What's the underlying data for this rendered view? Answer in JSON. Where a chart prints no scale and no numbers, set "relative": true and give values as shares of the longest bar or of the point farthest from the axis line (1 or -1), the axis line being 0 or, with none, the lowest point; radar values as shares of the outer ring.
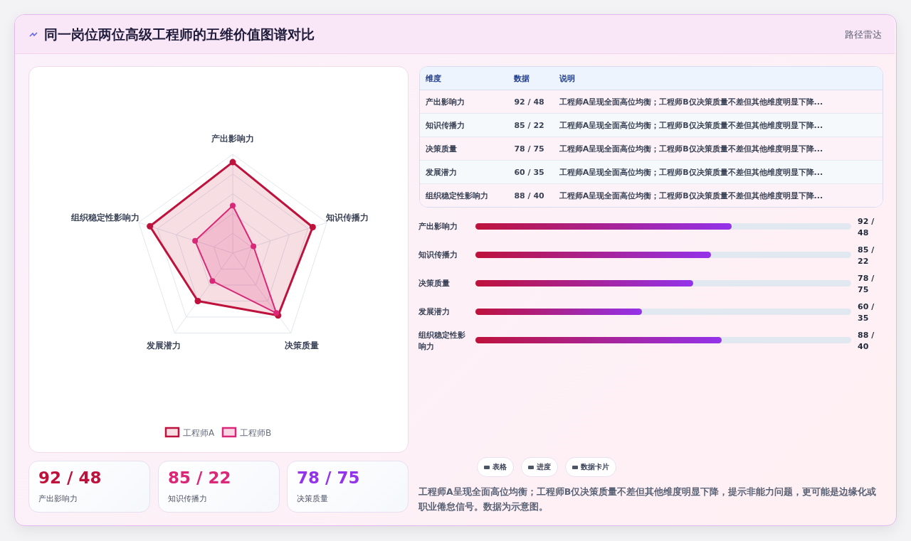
{
  "chart_data": [
    {
      "type": "other",
      "title": "同一岗位两位高级工程师的五维价值图谱对比",
      "subtitle": "路径雷达"
    },
    {
      "type": "radar",
      "relative": true,
      "categories": [
        "产出影响力",
        "知识传播力",
        "决策质量",
        "发展潜力",
        "组织稳定性影响力"
      ],
      "series": [
        {
          "name": "工程师A",
          "color": "#be123c",
          "values": [
            0.92,
            0.85,
            0.78,
            0.6,
            0.88
          ]
        },
        {
          "name": "工程师B",
          "color": "#db2777",
          "values": [
            0.48,
            0.22,
            0.75,
            0.35,
            0.4
          ]
        }
      ],
      "legend": "bottom",
      "marker": "circle"
    },
    {
      "type": "other",
      "categories": [
        "维度",
        "数据",
        "说明"
      ],
      "cell_labels": [
        [
          "产出影响力",
          "92 / 48",
          "工程师A呈现全面高位均衡；工程师B仅决策质量不差但其他维度明显下降..."
        ],
        [
          "知识传播力",
          "85 / 22",
          "工程师A呈现全面高位均衡；工程师B仅决策质量不差但其他维度明显下降..."
        ],
        [
          "决策质量",
          "78 / 75",
          "工程师A呈现全面高位均衡；工程师B仅决策质量不差但其他维度明显下降..."
        ],
        [
          "发展潜力",
          "60 / 35",
          "工程师A呈现全面高位均衡；工程师B仅决策质量不差但其他维度明显下降..."
        ],
        [
          "组织稳定性影响力",
          "88 / 40",
          "工程师A呈现全面高位均衡；工程师B仅决策质量不差但其他维度明显下降..."
        ]
      ]
    },
    {
      "type": "bar",
      "orientation": "horizontal",
      "relative": true,
      "categories": [
        "产出影响力",
        "知识传播力",
        "决策质量",
        "发展潜力",
        "组织稳定性影响力"
      ],
      "series": [
        {
          "color": "#be123c",
          "values": [
            1,
            0.92,
            0.85,
            0.65,
            0.96
          ]
        }
      ],
      "value_labels": [
        "92 / 48",
        "85 / 22",
        "78 / 75",
        "60 / 35",
        "88 / 40"
      ]
    },
    {
      "type": "other",
      "categories": [
        "产出影响力",
        "知识传播力",
        "决策质量"
      ],
      "value_labels": [
        "92 / 48",
        "85 / 22",
        "78 / 75"
      ]
    },
    {
      "type": "other",
      "annotations": [
        "表格",
        "进度",
        "数据卡片",
        "工程师A呈现全面高位均衡；工程师B仅决策质量不差但其他维度明显下降，提示非能力问题，更可能是边缘化或职业倦怠信号。数据为示意图。"
      ]
    }
  ]
}
